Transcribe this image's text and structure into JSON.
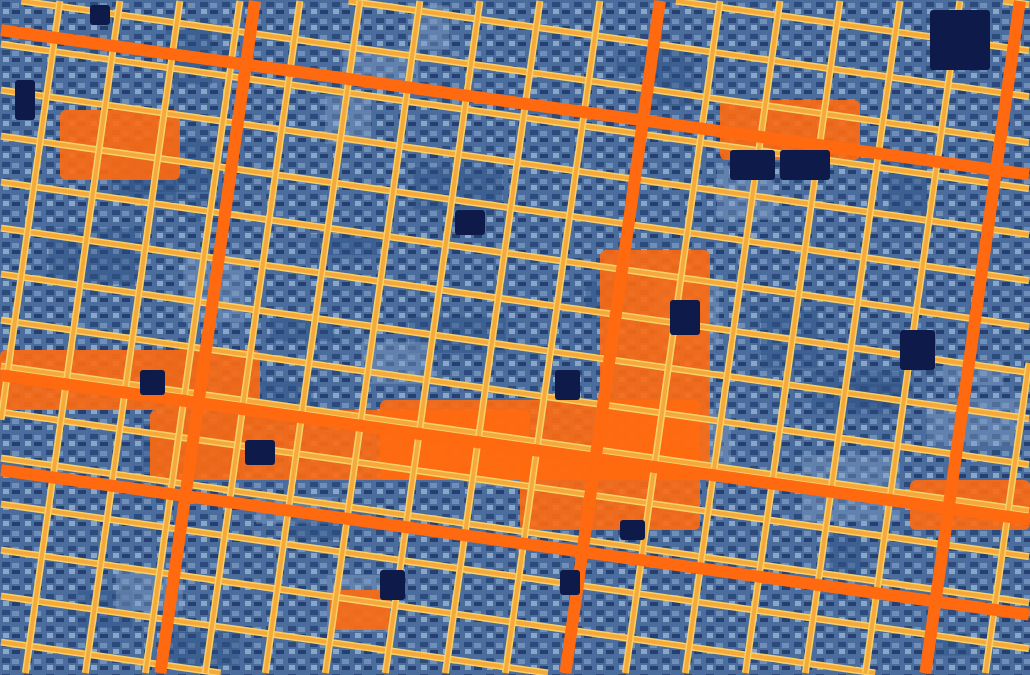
{
  "map": {
    "kind": "thermal-imagery",
    "colors": {
      "cool_background": "#4a6d9e",
      "cool_light": "#7f9cc0",
      "coldest": "#0d1a4a",
      "warm_road": "#f7a83a",
      "hot": "#ff6a10",
      "road_edge": "#f6d26a"
    }
  }
}
